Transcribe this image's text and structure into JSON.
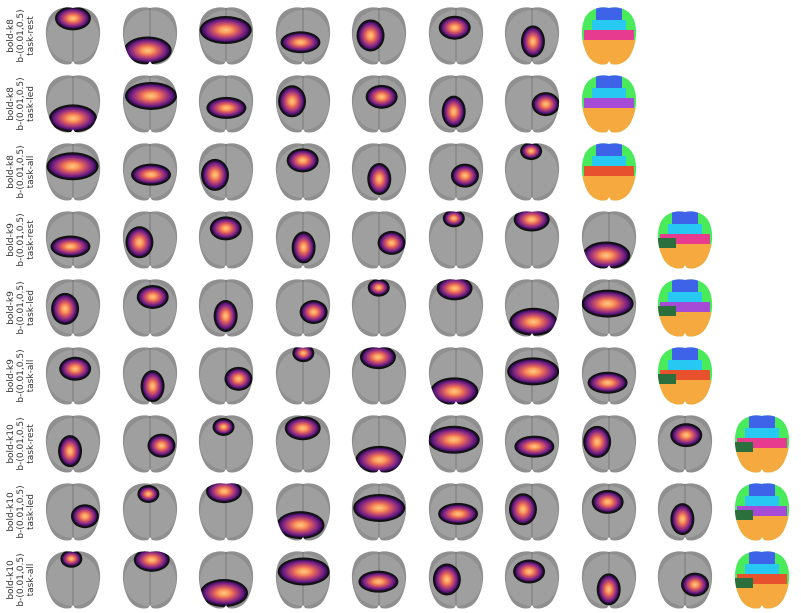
{
  "rows": [
    {
      "label": [
        "bold-k8",
        "b-(0.01,0.5)",
        "task-rest"
      ],
      "n_components": 7,
      "has_summary": true
    },
    {
      "label": [
        "bold-k8",
        "b-(0.01,0.5)",
        "task-led"
      ],
      "n_components": 7,
      "has_summary": true
    },
    {
      "label": [
        "bold-k8",
        "b-(0.01,0.5)",
        "task-all"
      ],
      "n_components": 7,
      "has_summary": true
    },
    {
      "label": [
        "bold-k9",
        "b-(0.01,0.5)",
        "task-rest"
      ],
      "n_components": 8,
      "has_summary": true
    },
    {
      "label": [
        "bold-k9",
        "b-(0.01,0.5)",
        "task-led"
      ],
      "n_components": 8,
      "has_summary": true
    },
    {
      "label": [
        "bold-k9",
        "b-(0.01,0.5)",
        "task-all"
      ],
      "n_components": 8,
      "has_summary": true
    },
    {
      "label": [
        "bold-k10",
        "b-(0.01,0.5)",
        "task-rest"
      ],
      "n_components": 9,
      "has_summary": true
    },
    {
      "label": [
        "bold-k10",
        "b-(0.01,0.5)",
        "task-led"
      ],
      "n_components": 9,
      "has_summary": true
    },
    {
      "label": [
        "bold-k10",
        "b-(0.01,0.5)",
        "task-all"
      ],
      "n_components": 9,
      "has_summary": true
    }
  ],
  "colors": {
    "background": "#ffffff",
    "brain_gray": "#8f8f8f",
    "brain_light": "#bdbdbd",
    "magma": [
      "#2d0b4e",
      "#6a1c81",
      "#a83a77",
      "#e0605d",
      "#fb9a5a",
      "#fcc98a"
    ],
    "parcel_palette": [
      "#3f63e8",
      "#4aeb5a",
      "#27c8f2",
      "#e63b8e",
      "#a64bd6",
      "#e8512e",
      "#f5a93e",
      "#2a6f3c",
      "#d46a1a",
      "#e8e23a"
    ]
  }
}
